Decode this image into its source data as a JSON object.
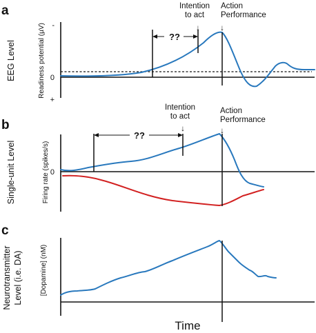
{
  "colors": {
    "blue": "#2878bd",
    "red": "#d22020",
    "ink": "#111111"
  },
  "x_axis_label": "Time",
  "arrow_glyph": "↓",
  "panels": {
    "a": {
      "letter": "a",
      "level_label": "EEG Level",
      "y_axis_label": "Readiness potential (µV)",
      "ticks": {
        "minus": "-",
        "zero": "0",
        "plus": "+"
      },
      "unknown_interval": "??",
      "intention_line1": "Intention",
      "intention_line2": "to act",
      "action_line1": "Action",
      "action_line2": "Performance"
    },
    "b": {
      "letter": "b",
      "level_label": "Single-unit Level",
      "y_axis_label": "Firing rate (spikes/s)",
      "ticks": {
        "zero": "0"
      },
      "unknown_interval": "??",
      "intention_line1": "Intention",
      "intention_line2": "to act",
      "action_line1": "Action",
      "action_line2": "Performance"
    },
    "c": {
      "letter": "c",
      "level_label_line1": "Neurotransmitter",
      "level_label_line2": "Level (i.e. DA)",
      "y_axis_label": "[Dopamine] (nM)"
    }
  }
}
